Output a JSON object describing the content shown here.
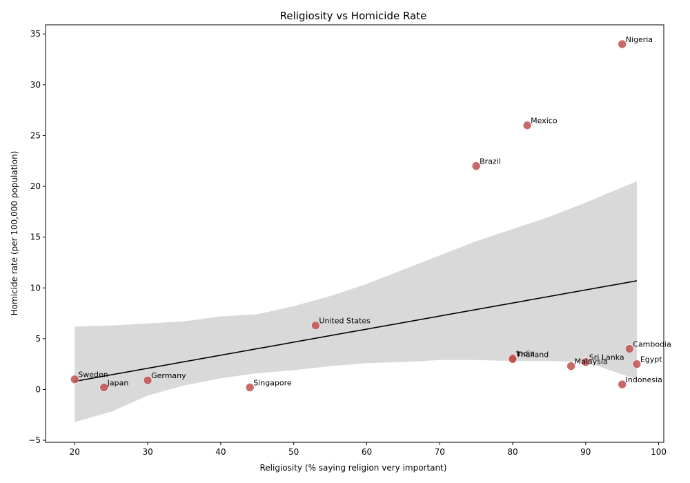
{
  "chart_data": {
    "type": "scatter",
    "title": "Religiosity vs Homicide Rate",
    "xlabel": "Religiosity (% saying religion very important)",
    "ylabel": "Homicide rate (per 100,000 population)",
    "xlim": [
      16,
      100.7
    ],
    "ylim": [
      -5.2,
      35.9
    ],
    "xticks": [
      20,
      30,
      40,
      50,
      60,
      70,
      80,
      90,
      100
    ],
    "yticks": [
      -5,
      0,
      5,
      10,
      15,
      20,
      25,
      30,
      35
    ],
    "grid": false,
    "colors": {
      "point": "#c0504d",
      "point_dark": "#a0383a",
      "fit_line": "#000000",
      "ci_band": "#d9d9d9"
    },
    "points": [
      {
        "label": "Sweden",
        "x": 20,
        "y": 1.0
      },
      {
        "label": "Japan",
        "x": 24,
        "y": 0.2
      },
      {
        "label": "Germany",
        "x": 30,
        "y": 0.9
      },
      {
        "label": "Singapore",
        "x": 44,
        "y": 0.2
      },
      {
        "label": "United States",
        "x": 53,
        "y": 6.3
      },
      {
        "label": "Brazil",
        "x": 75,
        "y": 22.0
      },
      {
        "label": "India",
        "x": 80,
        "y": 3.1
      },
      {
        "label": "Thailand",
        "x": 80,
        "y": 3.0
      },
      {
        "label": "Mexico",
        "x": 82,
        "y": 26.0
      },
      {
        "label": "Malaysia",
        "x": 88,
        "y": 2.3
      },
      {
        "label": "Sri Lanka",
        "x": 90,
        "y": 2.7
      },
      {
        "label": "Nigeria",
        "x": 95,
        "y": 34.0
      },
      {
        "label": "Indonesia",
        "x": 95,
        "y": 0.5
      },
      {
        "label": "Cambodia",
        "x": 96,
        "y": 4.0
      },
      {
        "label": "Egypt",
        "x": 97,
        "y": 2.5
      }
    ],
    "fit_line": [
      {
        "x": 20,
        "y": 0.8
      },
      {
        "x": 97,
        "y": 10.7
      }
    ],
    "ci_band": {
      "x": [
        20,
        25,
        30,
        35,
        40,
        45,
        50,
        55,
        60,
        65,
        70,
        75,
        80,
        85,
        90,
        97
      ],
      "upper": [
        6.2,
        6.3,
        6.5,
        6.7,
        7.2,
        7.4,
        8.2,
        9.2,
        10.4,
        11.8,
        13.2,
        14.6,
        15.8,
        17.0,
        18.4,
        20.5
      ],
      "lower": [
        -3.2,
        -2.2,
        -0.6,
        0.4,
        1.1,
        1.6,
        1.9,
        2.3,
        2.6,
        2.7,
        2.9,
        2.9,
        2.8,
        2.8,
        2.7,
        1.0
      ]
    }
  }
}
